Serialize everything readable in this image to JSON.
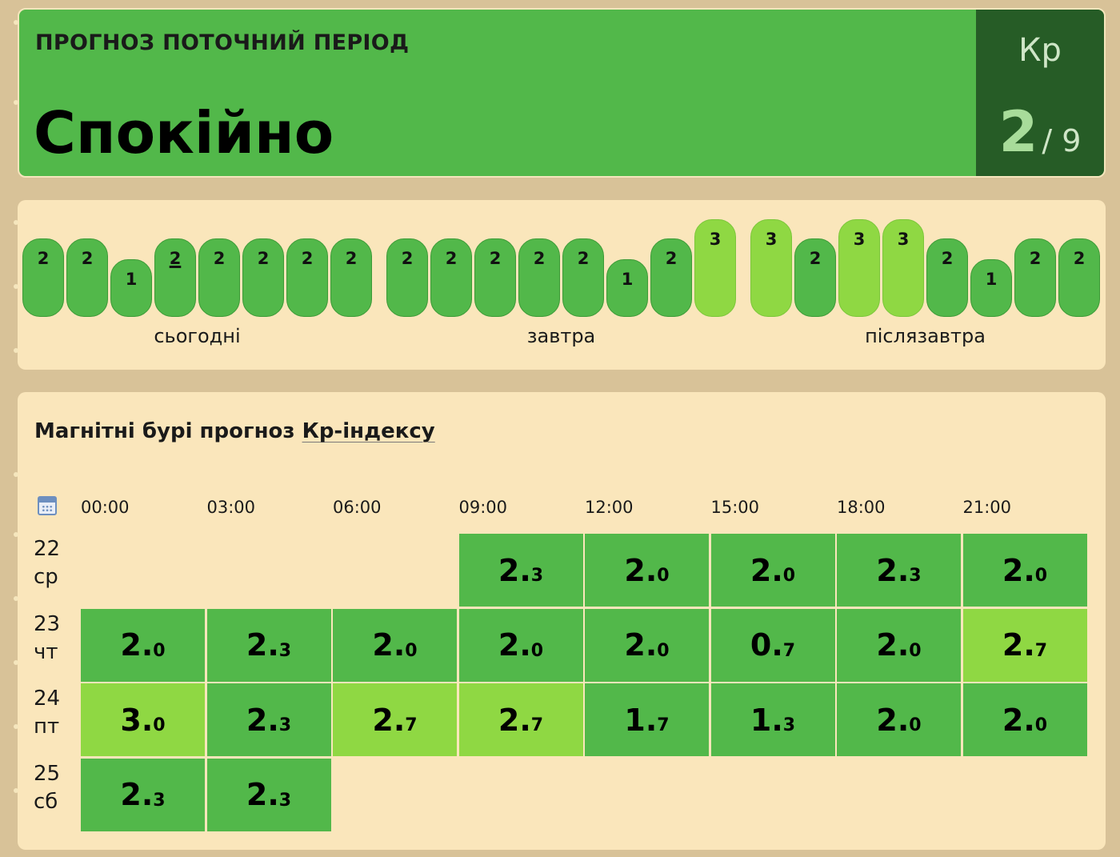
{
  "header": {
    "subtitle": "ПРОГНОЗ ПОТОЧНИЙ ПЕРІОД",
    "status": "Спокійно",
    "kp_label": "Кр",
    "kp_value": "2",
    "kp_max": "/ 9",
    "colors": {
      "green": "#52b84a",
      "dark_green": "#265c26"
    }
  },
  "forecast_bars": {
    "current_index": 3,
    "days": [
      {
        "label": "сьогодні",
        "values": [
          2,
          2,
          1,
          2,
          2,
          2,
          2,
          2
        ]
      },
      {
        "label": "завтра",
        "values": [
          2,
          2,
          2,
          2,
          2,
          1,
          2,
          3
        ]
      },
      {
        "label": "післязавтра",
        "values": [
          3,
          2,
          3,
          3,
          2,
          1,
          2,
          2
        ]
      }
    ],
    "colors": {
      "level_low": "#52b84a",
      "level_3": "#8fd843"
    }
  },
  "kp_table": {
    "title_prefix": "Магнітні бурі прогноз ",
    "title_link": "Кр-індексу",
    "calendar_icon": "calendar-icon",
    "hours": [
      "00:00",
      "03:00",
      "06:00",
      "09:00",
      "12:00",
      "15:00",
      "18:00",
      "21:00"
    ],
    "rows": [
      {
        "date": "22",
        "weekday": "ср",
        "values": [
          null,
          null,
          null,
          "2.3",
          "2.0",
          "2.0",
          "2.3",
          "2.0"
        ]
      },
      {
        "date": "23",
        "weekday": "чт",
        "values": [
          "2.0",
          "2.3",
          "2.0",
          "2.0",
          "2.0",
          "0.7",
          "2.0",
          "2.7"
        ]
      },
      {
        "date": "24",
        "weekday": "пт",
        "values": [
          "3.0",
          "2.3",
          "2.7",
          "2.7",
          "1.7",
          "1.3",
          "2.0",
          "2.0"
        ]
      },
      {
        "date": "25",
        "weekday": "сб",
        "values": [
          "2.3",
          "2.3",
          null,
          null,
          null,
          null,
          null,
          null
        ]
      }
    ]
  }
}
